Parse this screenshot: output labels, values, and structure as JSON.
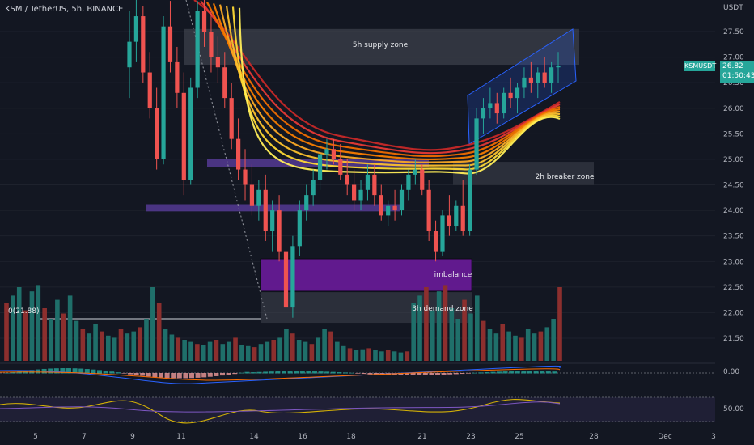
{
  "header": {
    "title": "KSM / TetherUS, 5h, BINANCE",
    "unit": "USDT"
  },
  "price_tag": {
    "symbol": "KSMUSDT",
    "last": "26.82",
    "countdown": "01:50:43"
  },
  "colors": {
    "background": "#131722",
    "up": "#26a69a",
    "down": "#ef5350",
    "grid": "#1e222d",
    "axis_text": "#b2b5be",
    "zone_gray": "#4a4e59",
    "zone_purple": "#5d3fa3",
    "imbalance": "#6a1b9a",
    "channel": "#2962ff"
  },
  "chart_data": {
    "type": "candlestick",
    "y_ticks": [
      27.5,
      27.0,
      26.5,
      26.0,
      25.5,
      25.0,
      24.5,
      24.0,
      23.5,
      23.0,
      22.5,
      22.0,
      21.5
    ],
    "y_tick_labels": [
      "27.50",
      "27.00",
      "26.50",
      "26.00",
      "25.50",
      "25.00",
      "24.50",
      "24.00",
      "23.50",
      "23.00",
      "22.50",
      "22.00",
      "21.50"
    ],
    "ylim": [
      21.0,
      28.2
    ],
    "x_tick_labels": [
      "5",
      "7",
      "9",
      "11",
      "14",
      "16",
      "18",
      "21",
      "23",
      "25",
      "28",
      "Dec",
      "3"
    ],
    "oscillator_ticks": [
      "0.00",
      "50.00"
    ],
    "annotations": {
      "supply": "5h supply zone",
      "breaker": "2h breaker zone",
      "imbalance": "imbalance",
      "demand": "3h demand zone",
      "fib_low": "0(21.88)"
    },
    "zones": [
      {
        "name": "5h supply zone",
        "y_top": 27.55,
        "y_bottom": 26.85
      },
      {
        "name": "2h breaker zone",
        "y_top": 24.95,
        "y_bottom": 24.5
      },
      {
        "name": "imbalance",
        "y_top": 23.05,
        "y_bottom": 22.42
      },
      {
        "name": "3h demand zone",
        "y_top": 22.4,
        "y_bottom": 21.8
      },
      {
        "name": "purple-upper",
        "y_top": 25.0,
        "y_bottom": 24.85
      },
      {
        "name": "purple-lower",
        "y_top": 24.12,
        "y_bottom": 23.98
      }
    ],
    "ohlc": [
      [
        26.8,
        27.9,
        26.2,
        27.3
      ],
      [
        27.3,
        28.2,
        26.9,
        27.8
      ],
      [
        27.8,
        28.0,
        26.5,
        26.7
      ],
      [
        26.7,
        27.1,
        25.8,
        26.0
      ],
      [
        26.0,
        26.4,
        24.8,
        25.0
      ],
      [
        25.0,
        27.8,
        24.9,
        27.6
      ],
      [
        27.6,
        28.1,
        26.7,
        26.9
      ],
      [
        26.9,
        27.2,
        26.0,
        26.3
      ],
      [
        26.3,
        26.7,
        24.3,
        24.6
      ],
      [
        24.6,
        26.6,
        24.5,
        26.4
      ],
      [
        26.4,
        28.1,
        26.2,
        27.9
      ],
      [
        27.9,
        28.2,
        27.2,
        27.5
      ],
      [
        27.5,
        27.9,
        26.7,
        27.0
      ],
      [
        27.0,
        27.4,
        26.5,
        26.8
      ],
      [
        26.8,
        27.1,
        26.0,
        26.2
      ],
      [
        26.2,
        26.5,
        25.2,
        25.4
      ],
      [
        25.4,
        25.8,
        24.6,
        24.8
      ],
      [
        24.8,
        25.2,
        24.2,
        24.5
      ],
      [
        24.5,
        24.9,
        23.9,
        24.1
      ],
      [
        24.1,
        24.6,
        23.8,
        24.4
      ],
      [
        24.4,
        24.7,
        23.4,
        23.6
      ],
      [
        23.6,
        24.2,
        23.2,
        24.0
      ],
      [
        24.0,
        24.3,
        23.0,
        23.2
      ],
      [
        23.2,
        23.4,
        21.9,
        22.1
      ],
      [
        22.1,
        23.5,
        21.9,
        23.3
      ],
      [
        23.3,
        24.2,
        23.1,
        24.0
      ],
      [
        24.0,
        24.5,
        23.8,
        24.3
      ],
      [
        24.3,
        24.8,
        24.1,
        24.6
      ],
      [
        24.6,
        25.3,
        24.4,
        25.1
      ],
      [
        25.1,
        25.4,
        24.8,
        25.2
      ],
      [
        25.2,
        25.4,
        24.9,
        25.0
      ],
      [
        25.0,
        25.3,
        24.6,
        24.7
      ],
      [
        24.7,
        25.0,
        24.3,
        24.5
      ],
      [
        24.5,
        24.8,
        24.0,
        24.2
      ],
      [
        24.2,
        24.6,
        24.0,
        24.4
      ],
      [
        24.4,
        24.9,
        24.2,
        24.7
      ],
      [
        24.7,
        24.9,
        24.1,
        24.3
      ],
      [
        24.3,
        24.5,
        23.8,
        23.9
      ],
      [
        23.9,
        24.2,
        23.7,
        24.1
      ],
      [
        24.1,
        24.4,
        23.8,
        24.0
      ],
      [
        24.0,
        24.5,
        23.9,
        24.4
      ],
      [
        24.4,
        24.8,
        24.2,
        24.7
      ],
      [
        24.7,
        25.0,
        24.5,
        24.8
      ],
      [
        24.8,
        24.9,
        24.3,
        24.4
      ],
      [
        24.4,
        24.6,
        23.4,
        23.6
      ],
      [
        23.6,
        23.8,
        23.0,
        23.2
      ],
      [
        23.2,
        24.0,
        23.1,
        23.9
      ],
      [
        23.9,
        24.3,
        23.5,
        23.7
      ],
      [
        23.7,
        24.2,
        23.6,
        24.1
      ],
      [
        24.1,
        24.6,
        23.5,
        23.6
      ],
      [
        23.6,
        24.9,
        23.5,
        24.8
      ],
      [
        24.8,
        26.0,
        24.7,
        25.8
      ],
      [
        25.8,
        26.2,
        25.5,
        26.0
      ],
      [
        26.0,
        26.4,
        25.8,
        26.1
      ],
      [
        26.1,
        26.3,
        25.7,
        25.9
      ],
      [
        25.9,
        26.4,
        25.8,
        26.3
      ],
      [
        26.3,
        26.6,
        26.0,
        26.2
      ],
      [
        26.2,
        26.5,
        25.9,
        26.4
      ],
      [
        26.4,
        26.8,
        26.2,
        26.6
      ],
      [
        26.6,
        26.9,
        26.3,
        26.5
      ],
      [
        26.5,
        26.8,
        26.2,
        26.7
      ],
      [
        26.7,
        27.0,
        26.4,
        26.5
      ],
      [
        26.5,
        26.9,
        26.3,
        26.8
      ],
      [
        26.8,
        27.1,
        26.5,
        26.82
      ]
    ],
    "volume": [
      55,
      62,
      70,
      48,
      66,
      72,
      50,
      40,
      58,
      45,
      62,
      38,
      30,
      26,
      35,
      28,
      24,
      22,
      30,
      26,
      28,
      32,
      40,
      70,
      55,
      30,
      25,
      22,
      20,
      18,
      16,
      15,
      18,
      20,
      16,
      18,
      22,
      15,
      14,
      13,
      16,
      18,
      20,
      22,
      30,
      26,
      20,
      18,
      16,
      22,
      30,
      28,
      18,
      14,
      12,
      10,
      11,
      12,
      10,
      9,
      10,
      9,
      8,
      9
    ]
  }
}
